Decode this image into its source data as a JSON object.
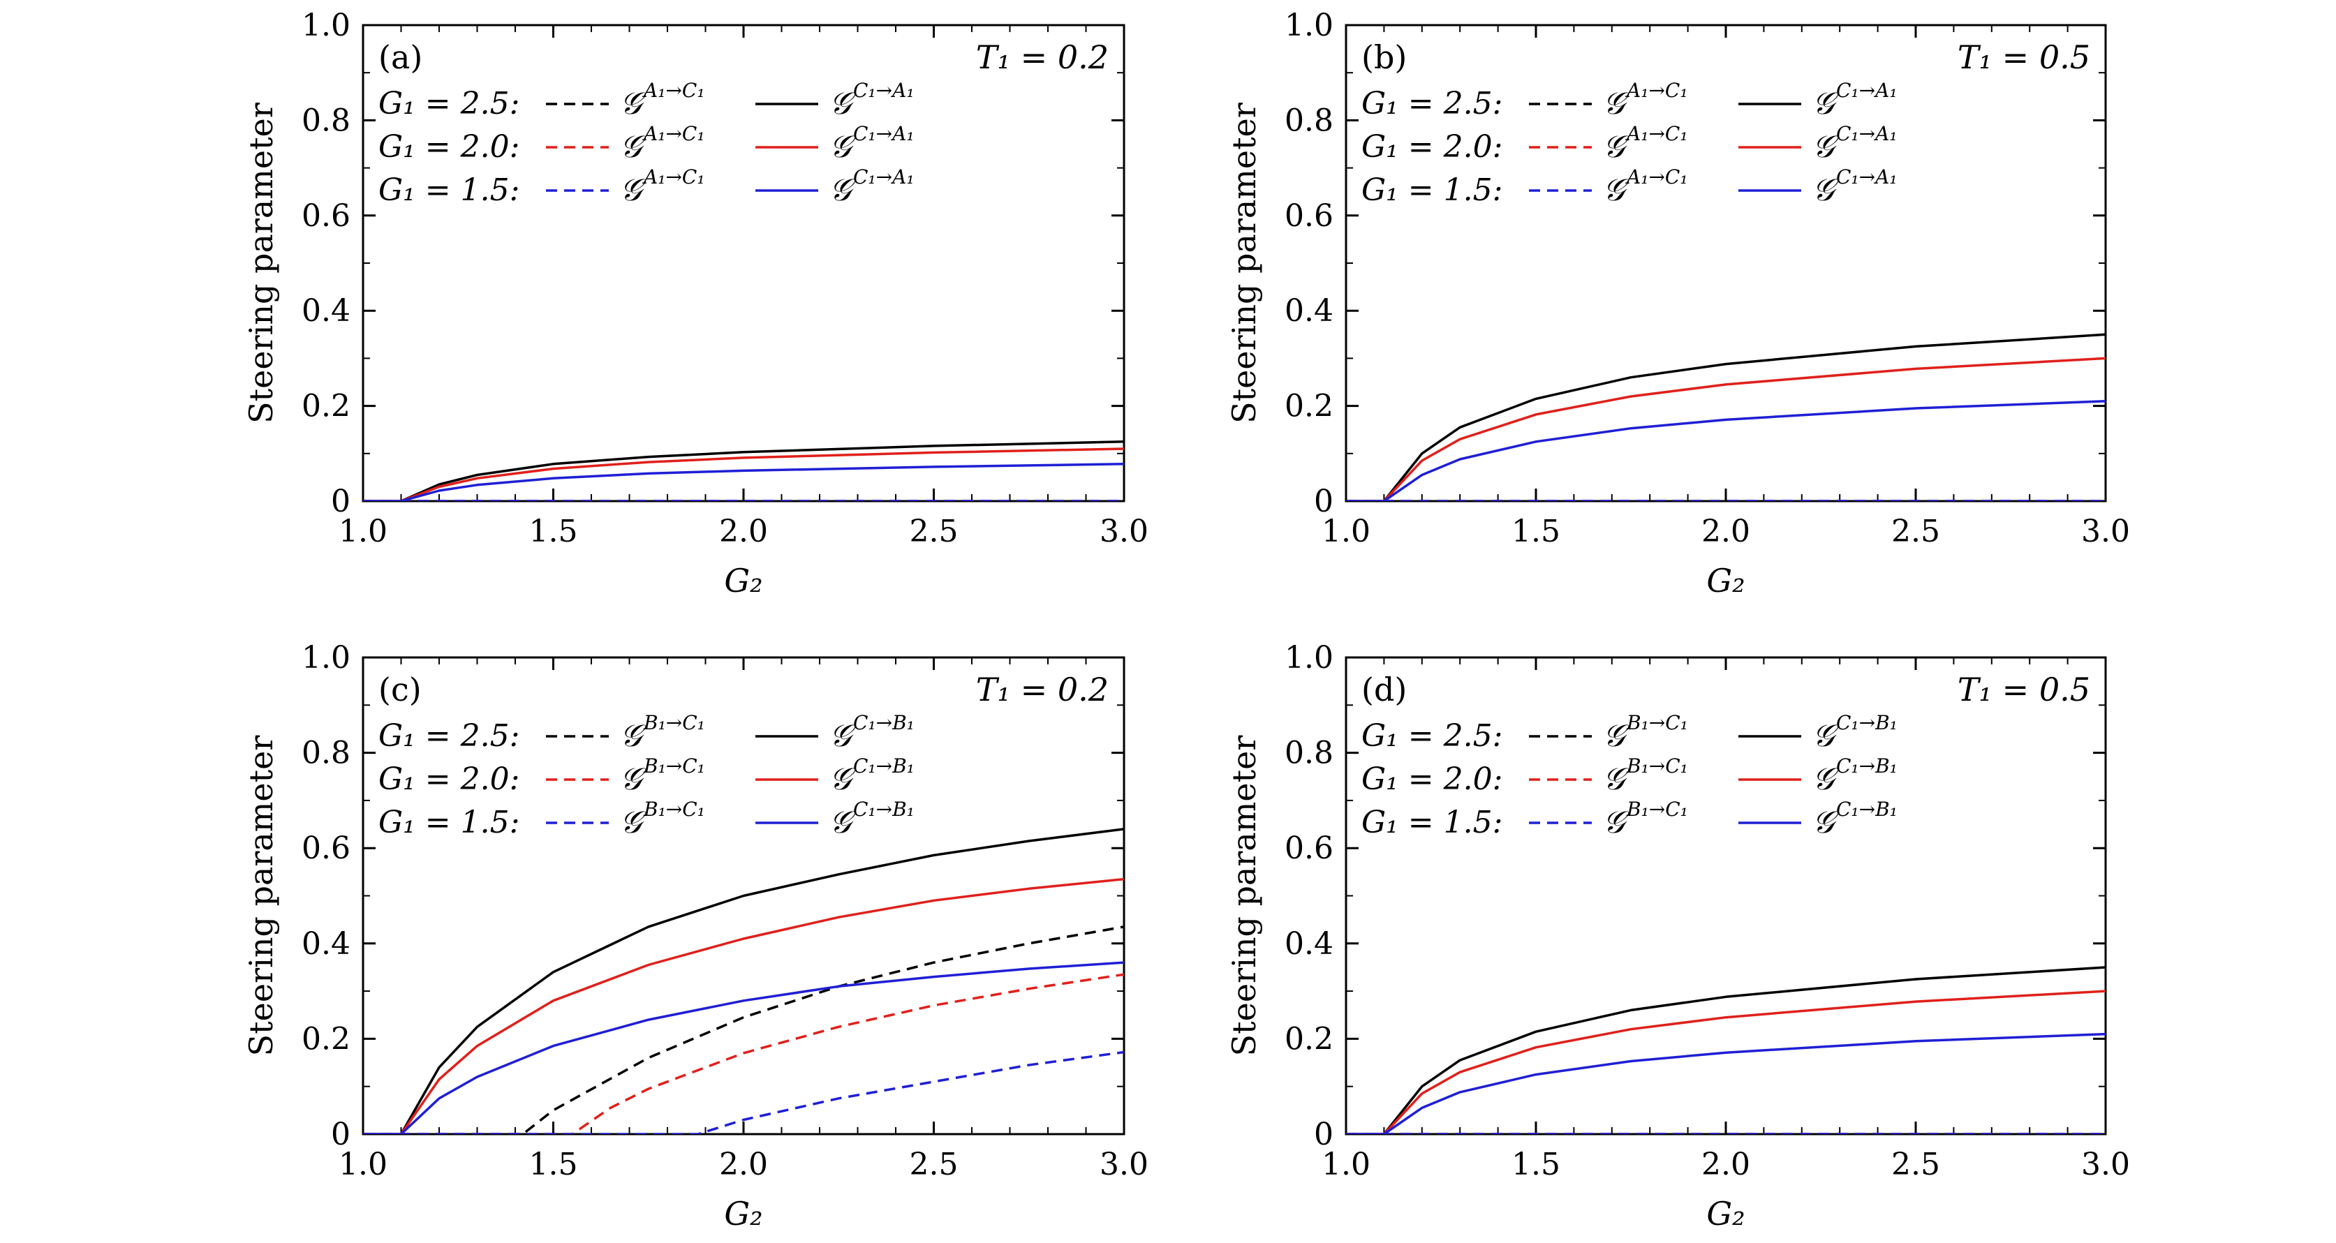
{
  "chart_data": [
    {
      "type": "line",
      "panel_label": "(a)",
      "annotation": "T₁ = 0.2",
      "xlabel": "G₂",
      "ylabel": "Steering parameter",
      "xlim": [
        1.0,
        3.0
      ],
      "ylim": [
        0,
        1.0
      ],
      "x_ticks": [
        "1.0",
        "1.5",
        "2.0",
        "2.5",
        "3.0"
      ],
      "y_ticks": [
        "0",
        "0.2",
        "0.4",
        "0.6",
        "0.8",
        "1.0"
      ],
      "legend_rows": [
        {
          "label": "G₁ = 2.5:",
          "color": "#000000",
          "dashed_label": "𝒢",
          "dashed_sup": "A₁→C₁",
          "solid_label": "𝒢",
          "solid_sup": "C₁→A₁"
        },
        {
          "label": "G₁ = 2.0:",
          "color": "#e0201b",
          "dashed_label": "𝒢",
          "dashed_sup": "A₁→C₁",
          "solid_label": "𝒢",
          "solid_sup": "C₁→A₁"
        },
        {
          "label": "G₁ = 1.5:",
          "color": "#1f1fd6",
          "dashed_label": "𝒢",
          "dashed_sup": "A₁→C₁",
          "solid_label": "𝒢",
          "solid_sup": "C₁→A₁"
        }
      ],
      "series": [
        {
          "color": "#000000",
          "style": "dashed",
          "x": [
            1.0,
            3.0
          ],
          "values": [
            0,
            0
          ]
        },
        {
          "color": "#e0201b",
          "style": "dashed",
          "x": [
            1.0,
            3.0
          ],
          "values": [
            0,
            0
          ]
        },
        {
          "color": "#1f1fd6",
          "style": "dashed",
          "x": [
            1.0,
            3.0
          ],
          "values": [
            0,
            0
          ]
        },
        {
          "color": "#000000",
          "style": "solid",
          "x": [
            1.0,
            1.1,
            1.2,
            1.3,
            1.5,
            1.75,
            2.0,
            2.5,
            3.0
          ],
          "values": [
            0,
            0,
            0.035,
            0.055,
            0.078,
            0.093,
            0.103,
            0.116,
            0.125
          ]
        },
        {
          "color": "#e0201b",
          "style": "solid",
          "x": [
            1.0,
            1.1,
            1.2,
            1.3,
            1.5,
            1.75,
            2.0,
            2.5,
            3.0
          ],
          "values": [
            0,
            0,
            0.03,
            0.048,
            0.068,
            0.082,
            0.091,
            0.102,
            0.11
          ]
        },
        {
          "color": "#1f1fd6",
          "style": "solid",
          "x": [
            1.0,
            1.1,
            1.2,
            1.3,
            1.5,
            1.75,
            2.0,
            2.5,
            3.0
          ],
          "values": [
            0,
            0,
            0.022,
            0.034,
            0.048,
            0.058,
            0.064,
            0.072,
            0.078
          ]
        }
      ]
    },
    {
      "type": "line",
      "panel_label": "(b)",
      "annotation": "T₁ = 0.5",
      "xlabel": "G₂",
      "ylabel": "Steering parameter",
      "xlim": [
        1.0,
        3.0
      ],
      "ylim": [
        0,
        1.0
      ],
      "x_ticks": [
        "1.0",
        "1.5",
        "2.0",
        "2.5",
        "3.0"
      ],
      "y_ticks": [
        "0",
        "0.2",
        "0.4",
        "0.6",
        "0.8",
        "1.0"
      ],
      "legend_rows": [
        {
          "label": "G₁ = 2.5:",
          "color": "#000000",
          "dashed_label": "𝒢",
          "dashed_sup": "A₁→C₁",
          "solid_label": "𝒢",
          "solid_sup": "C₁→A₁"
        },
        {
          "label": "G₁ = 2.0:",
          "color": "#e0201b",
          "dashed_label": "𝒢",
          "dashed_sup": "A₁→C₁",
          "solid_label": "𝒢",
          "solid_sup": "C₁→A₁"
        },
        {
          "label": "G₁ = 1.5:",
          "color": "#1f1fd6",
          "dashed_label": "𝒢",
          "dashed_sup": "A₁→C₁",
          "solid_label": "𝒢",
          "solid_sup": "C₁→A₁"
        }
      ],
      "series": [
        {
          "color": "#000000",
          "style": "dashed",
          "x": [
            1.0,
            3.0
          ],
          "values": [
            0,
            0
          ]
        },
        {
          "color": "#e0201b",
          "style": "dashed",
          "x": [
            1.0,
            3.0
          ],
          "values": [
            0,
            0
          ]
        },
        {
          "color": "#1f1fd6",
          "style": "dashed",
          "x": [
            1.0,
            3.0
          ],
          "values": [
            0,
            0
          ]
        },
        {
          "color": "#000000",
          "style": "solid",
          "x": [
            1.0,
            1.1,
            1.2,
            1.3,
            1.5,
            1.75,
            2.0,
            2.5,
            3.0
          ],
          "values": [
            0,
            0,
            0.1,
            0.155,
            0.215,
            0.26,
            0.288,
            0.325,
            0.35
          ]
        },
        {
          "color": "#e0201b",
          "style": "solid",
          "x": [
            1.0,
            1.1,
            1.2,
            1.3,
            1.5,
            1.75,
            2.0,
            2.5,
            3.0
          ],
          "values": [
            0,
            0,
            0.085,
            0.13,
            0.182,
            0.22,
            0.245,
            0.278,
            0.3
          ]
        },
        {
          "color": "#1f1fd6",
          "style": "solid",
          "x": [
            1.0,
            1.1,
            1.2,
            1.3,
            1.5,
            1.75,
            2.0,
            2.5,
            3.0
          ],
          "values": [
            0,
            0,
            0.055,
            0.088,
            0.125,
            0.153,
            0.171,
            0.195,
            0.21
          ]
        }
      ]
    },
    {
      "type": "line",
      "panel_label": "(c)",
      "annotation": "T₁ = 0.2",
      "xlabel": "G₂",
      "ylabel": "Steering parameter",
      "xlim": [
        1.0,
        3.0
      ],
      "ylim": [
        0,
        1.0
      ],
      "x_ticks": [
        "1.0",
        "1.5",
        "2.0",
        "2.5",
        "3.0"
      ],
      "y_ticks": [
        "0",
        "0.2",
        "0.4",
        "0.6",
        "0.8",
        "1.0"
      ],
      "legend_rows": [
        {
          "label": "G₁ = 2.5:",
          "color": "#000000",
          "dashed_label": "𝒢",
          "dashed_sup": "B₁→C₁",
          "solid_label": "𝒢",
          "solid_sup": "C₁→B₁"
        },
        {
          "label": "G₁ = 2.0:",
          "color": "#e0201b",
          "dashed_label": "𝒢",
          "dashed_sup": "B₁→C₁",
          "solid_label": "𝒢",
          "solid_sup": "C₁→B₁"
        },
        {
          "label": "G₁ = 1.5:",
          "color": "#1f1fd6",
          "dashed_label": "𝒢",
          "dashed_sup": "B₁→C₁",
          "solid_label": "𝒢",
          "solid_sup": "C₁→B₁"
        }
      ],
      "series": [
        {
          "color": "#000000",
          "style": "dashed",
          "x": [
            1.0,
            1.42,
            1.5,
            1.75,
            2.0,
            2.25,
            2.5,
            2.75,
            3.0
          ],
          "values": [
            0,
            0,
            0.05,
            0.16,
            0.245,
            0.31,
            0.36,
            0.4,
            0.435
          ]
        },
        {
          "color": "#e0201b",
          "style": "dashed",
          "x": [
            1.0,
            1.55,
            1.65,
            1.75,
            2.0,
            2.25,
            2.5,
            2.75,
            3.0
          ],
          "values": [
            0,
            0,
            0.055,
            0.095,
            0.17,
            0.225,
            0.27,
            0.305,
            0.335
          ]
        },
        {
          "color": "#1f1fd6",
          "style": "dashed",
          "x": [
            1.0,
            1.88,
            2.0,
            2.25,
            2.5,
            2.75,
            3.0
          ],
          "values": [
            0,
            0,
            0.03,
            0.075,
            0.11,
            0.145,
            0.172
          ]
        },
        {
          "color": "#000000",
          "style": "solid",
          "x": [
            1.0,
            1.1,
            1.2,
            1.3,
            1.5,
            1.75,
            2.0,
            2.25,
            2.5,
            2.75,
            3.0
          ],
          "values": [
            0,
            0,
            0.14,
            0.225,
            0.34,
            0.435,
            0.5,
            0.545,
            0.585,
            0.615,
            0.64
          ]
        },
        {
          "color": "#e0201b",
          "style": "solid",
          "x": [
            1.0,
            1.1,
            1.2,
            1.3,
            1.5,
            1.75,
            2.0,
            2.25,
            2.5,
            2.75,
            3.0
          ],
          "values": [
            0,
            0,
            0.115,
            0.185,
            0.28,
            0.355,
            0.41,
            0.455,
            0.49,
            0.515,
            0.535
          ]
        },
        {
          "color": "#1f1fd6",
          "style": "solid",
          "x": [
            1.0,
            1.1,
            1.2,
            1.3,
            1.5,
            1.75,
            2.0,
            2.25,
            2.5,
            2.75,
            3.0
          ],
          "values": [
            0,
            0,
            0.075,
            0.12,
            0.185,
            0.24,
            0.28,
            0.31,
            0.33,
            0.347,
            0.36
          ]
        }
      ]
    },
    {
      "type": "line",
      "panel_label": "(d)",
      "annotation": "T₁ = 0.5",
      "xlabel": "G₂",
      "ylabel": "Steering parameter",
      "xlim": [
        1.0,
        3.0
      ],
      "ylim": [
        0,
        1.0
      ],
      "x_ticks": [
        "1.0",
        "1.5",
        "2.0",
        "2.5",
        "3.0"
      ],
      "y_ticks": [
        "0",
        "0.2",
        "0.4",
        "0.6",
        "0.8",
        "1.0"
      ],
      "legend_rows": [
        {
          "label": "G₁ = 2.5:",
          "color": "#000000",
          "dashed_label": "𝒢",
          "dashed_sup": "B₁→C₁",
          "solid_label": "𝒢",
          "solid_sup": "C₁→B₁"
        },
        {
          "label": "G₁ = 2.0:",
          "color": "#e0201b",
          "dashed_label": "𝒢",
          "dashed_sup": "B₁→C₁",
          "solid_label": "𝒢",
          "solid_sup": "C₁→B₁"
        },
        {
          "label": "G₁ = 1.5:",
          "color": "#1f1fd6",
          "dashed_label": "𝒢",
          "dashed_sup": "B₁→C₁",
          "solid_label": "𝒢",
          "solid_sup": "C₁→B₁"
        }
      ],
      "series": [
        {
          "color": "#000000",
          "style": "dashed",
          "x": [
            1.0,
            3.0
          ],
          "values": [
            0,
            0
          ]
        },
        {
          "color": "#e0201b",
          "style": "dashed",
          "x": [
            1.0,
            3.0
          ],
          "values": [
            0,
            0
          ]
        },
        {
          "color": "#1f1fd6",
          "style": "dashed",
          "x": [
            1.0,
            3.0
          ],
          "values": [
            0,
            0
          ]
        },
        {
          "color": "#000000",
          "style": "solid",
          "x": [
            1.0,
            1.1,
            1.2,
            1.3,
            1.5,
            1.75,
            2.0,
            2.5,
            3.0
          ],
          "values": [
            0,
            0,
            0.1,
            0.155,
            0.215,
            0.26,
            0.288,
            0.325,
            0.35
          ]
        },
        {
          "color": "#e0201b",
          "style": "solid",
          "x": [
            1.0,
            1.1,
            1.2,
            1.3,
            1.5,
            1.75,
            2.0,
            2.5,
            3.0
          ],
          "values": [
            0,
            0,
            0.085,
            0.13,
            0.182,
            0.22,
            0.245,
            0.278,
            0.3
          ]
        },
        {
          "color": "#1f1fd6",
          "style": "solid",
          "x": [
            1.0,
            1.1,
            1.2,
            1.3,
            1.5,
            1.75,
            2.0,
            2.5,
            3.0
          ],
          "values": [
            0,
            0,
            0.055,
            0.088,
            0.125,
            0.153,
            0.171,
            0.195,
            0.21
          ]
        }
      ]
    }
  ]
}
